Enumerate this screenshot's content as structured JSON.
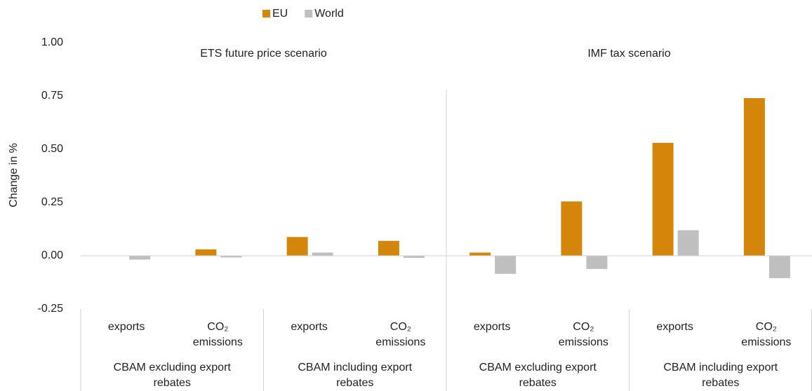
{
  "chart_data": {
    "type": "bar",
    "y_label": "Change in %",
    "categories": [
      "exports",
      "CO₂ emissions",
      "exports",
      "CO₂ emissions",
      "exports",
      "CO₂ emissions",
      "exports",
      "CO₂ emissions"
    ],
    "category_groups": [
      "CBAM excluding export rebates",
      "CBAM including export rebates",
      "CBAM excluding export rebates",
      "CBAM including export rebates"
    ],
    "scenarios": [
      "ETS future price scenario",
      "IMF tax scenario"
    ],
    "series": [
      {
        "name": "EU",
        "color": "#d4860b",
        "values": [
          0,
          0.03,
          0.088,
          0.07,
          0.015,
          0.255,
          0.53,
          0.74
        ]
      },
      {
        "name": "World",
        "color": "#bfbfbf",
        "values": [
          -0.018,
          -0.008,
          0.015,
          -0.01,
          -0.085,
          -0.062,
          0.12,
          -0.105
        ]
      }
    ],
    "ylim": [
      -0.25,
      1
    ],
    "yticks": [
      {
        "value": -0.25,
        "label": "-0.25"
      },
      {
        "value": 0,
        "label": "0.00"
      },
      {
        "value": 0.25,
        "label": "0.25"
      },
      {
        "value": 0.5,
        "label": "0.50"
      },
      {
        "value": 0.75,
        "label": "0.75"
      },
      {
        "value": 1,
        "label": "1.00"
      }
    ],
    "legend": "top"
  }
}
